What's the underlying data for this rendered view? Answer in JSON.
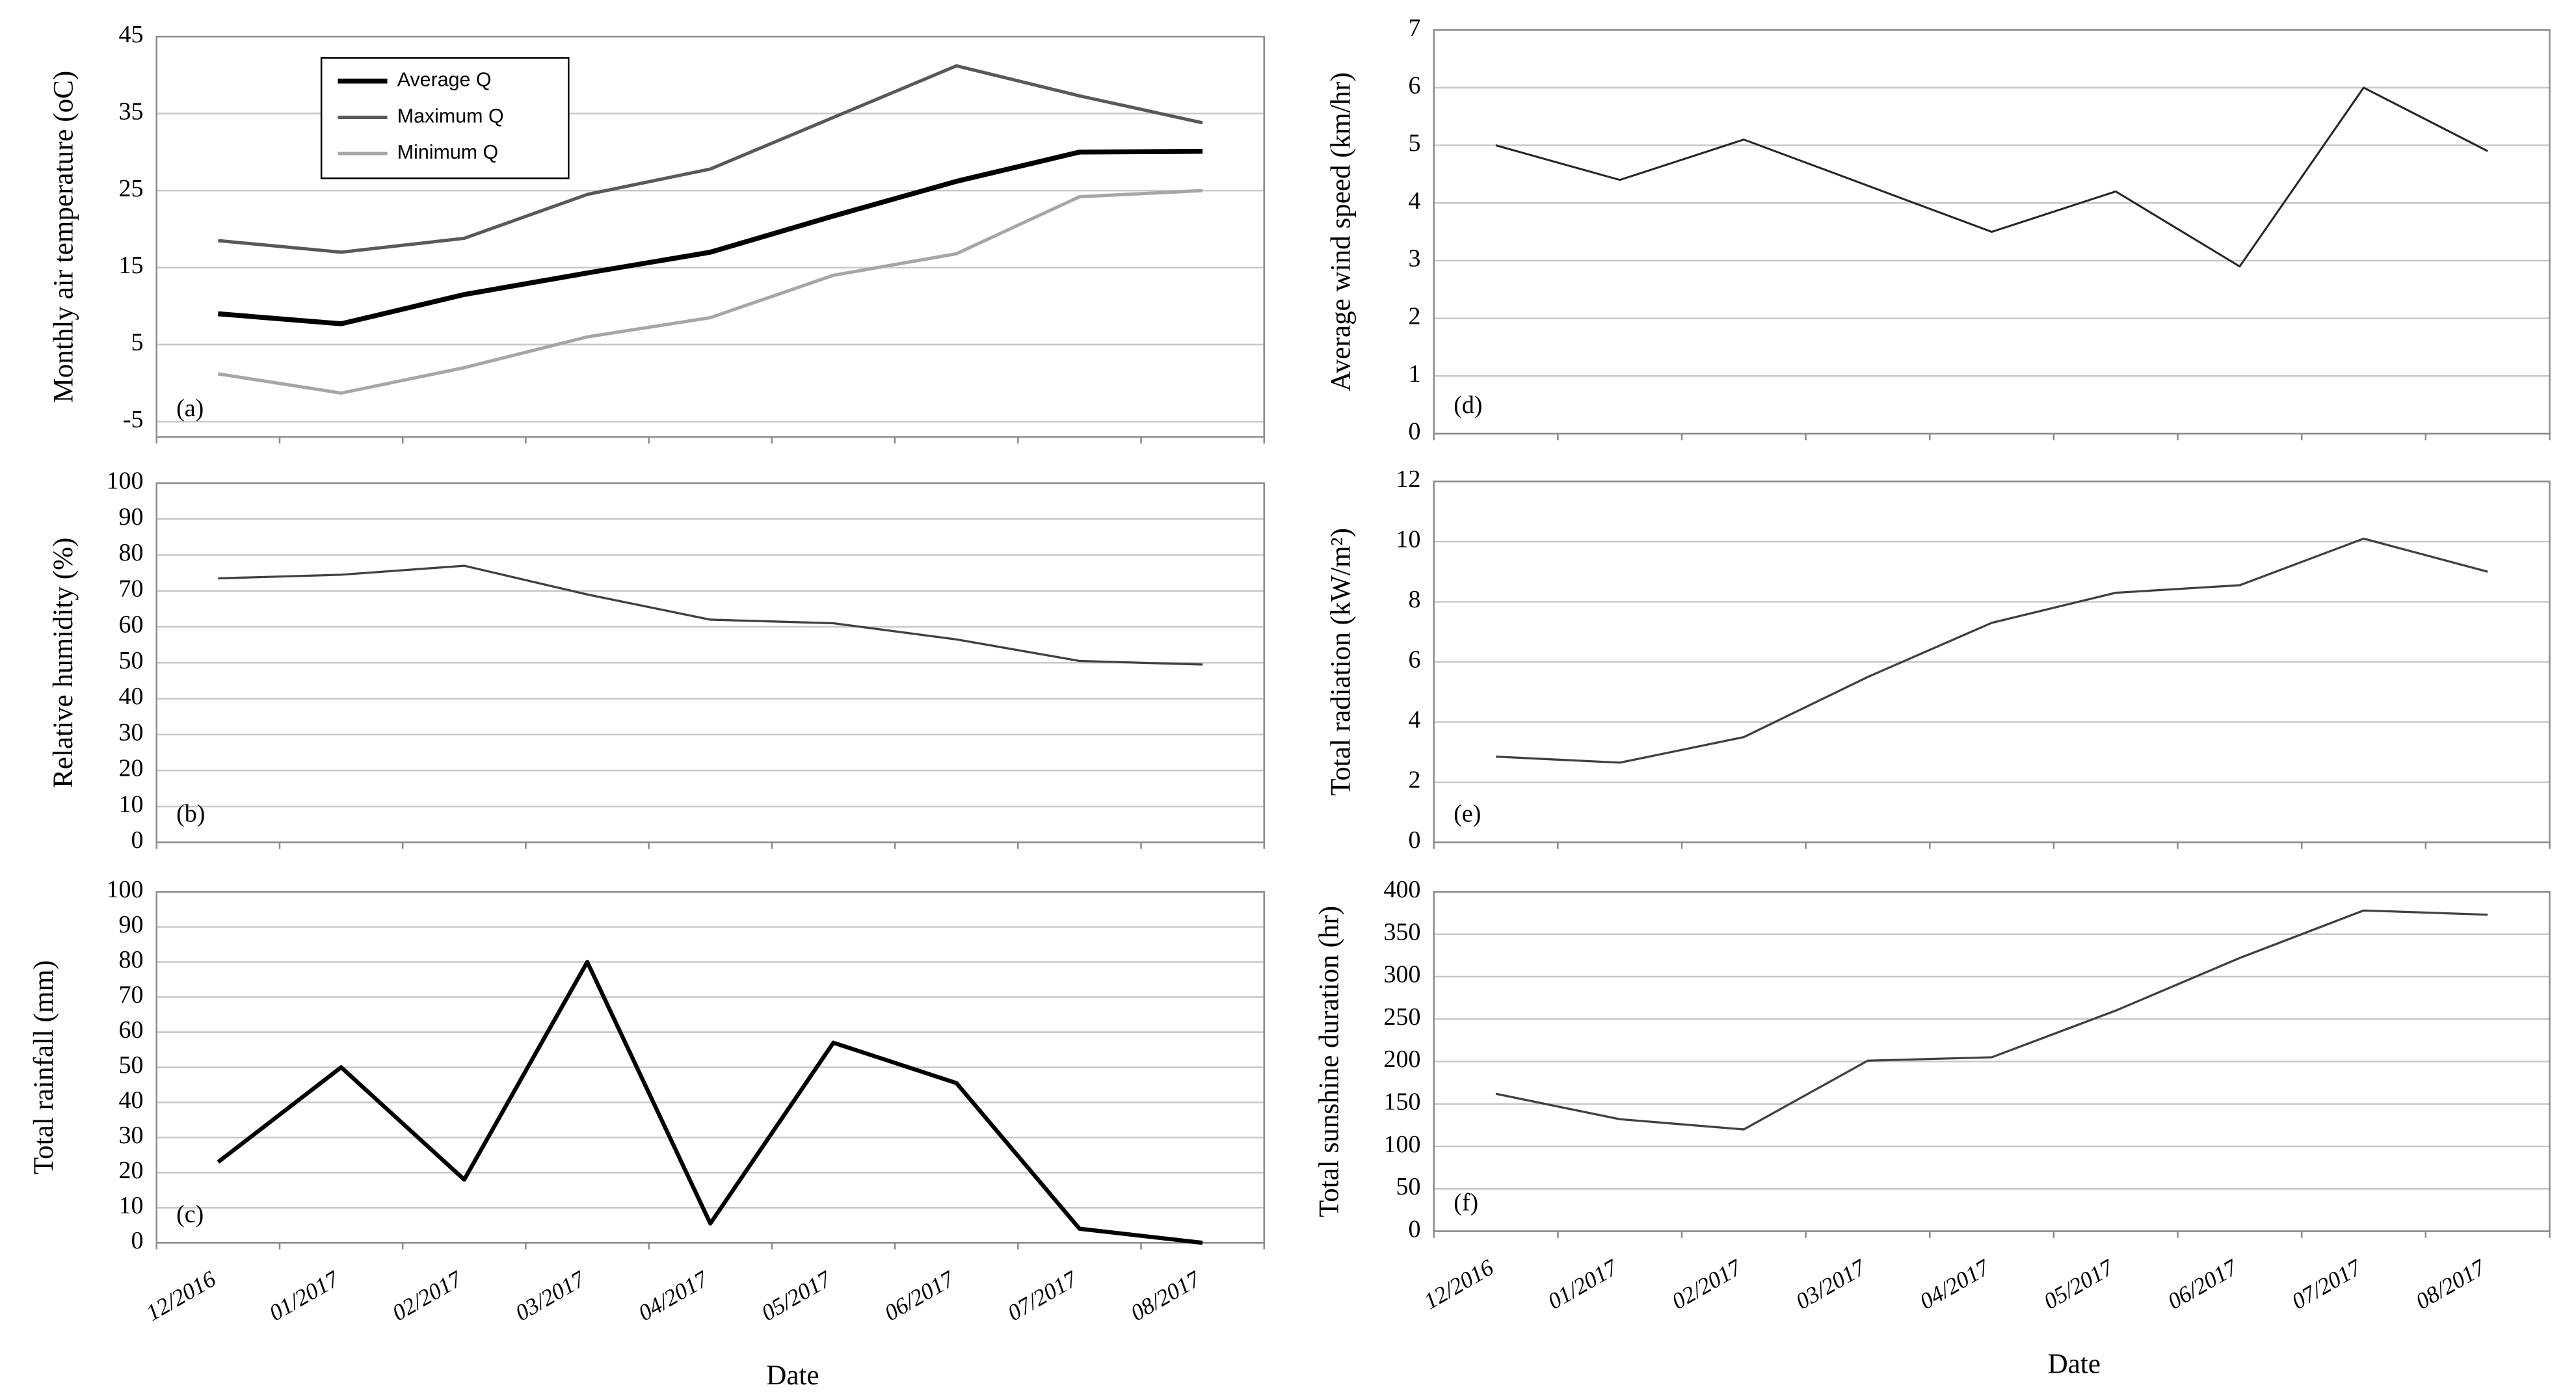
{
  "chart_data": [
    {
      "type": "line",
      "ylabel": "Monthly air temperature (oC)",
      "panel": "(a)",
      "ylim": [
        -7,
        45
      ],
      "yticks": [
        -5,
        5,
        15,
        25,
        35,
        45
      ],
      "grid": true,
      "legend": "upper left",
      "series": [
        {
          "name": "Average Q",
          "color": "#000000",
          "width": 3,
          "values": [
            9,
            7.7,
            11.5,
            14.3,
            17,
            21.7,
            26.2,
            30,
            30.1
          ]
        },
        {
          "name": "Maximum Q",
          "color": "#595959",
          "width": 2,
          "values": [
            18.5,
            17,
            18.8,
            24.5,
            27.8,
            34.5,
            41.2,
            37.3,
            33.8
          ]
        },
        {
          "name": "Minimum Q",
          "color": "#a6a6a6",
          "width": 2,
          "values": [
            1.2,
            -1.3,
            2,
            6,
            8.5,
            14,
            16.8,
            24.2,
            25
          ]
        }
      ]
    },
    {
      "type": "line",
      "ylabel": "Relative humidity (%)",
      "panel": "(b)",
      "ylim": [
        0,
        100
      ],
      "yticks": [
        0,
        10,
        20,
        30,
        40,
        50,
        60,
        70,
        80,
        90,
        100
      ],
      "grid": true,
      "series": [
        {
          "color": "#404040",
          "width": 1.3,
          "values": [
            73.5,
            74.5,
            77,
            69,
            62,
            61,
            56.5,
            50.5,
            49.5
          ]
        }
      ]
    },
    {
      "type": "line",
      "ylabel": "Total rainfall (mm)",
      "panel": "(c)",
      "ylim": [
        0,
        100
      ],
      "yticks": [
        0,
        10,
        20,
        30,
        40,
        50,
        60,
        70,
        80,
        90,
        100
      ],
      "grid": true,
      "xlabel": "Date",
      "categories": [
        "12/2016",
        "01/2017",
        "02/2017",
        "03/2017",
        "04/2017",
        "05/2017",
        "06/2017",
        "07/2017",
        "08/2017"
      ],
      "series": [
        {
          "color": "#000000",
          "width": 2.5,
          "values": [
            23,
            50,
            18,
            80,
            5.5,
            57,
            45.5,
            4,
            0
          ]
        }
      ]
    },
    {
      "type": "line",
      "ylabel": "Average wind speed (km/hr)",
      "panel": "(d)",
      "ylim": [
        0,
        7
      ],
      "yticks": [
        0,
        1,
        2,
        3,
        4,
        5,
        6,
        7
      ],
      "grid": true,
      "series": [
        {
          "color": "#262626",
          "width": 1.2,
          "values": [
            5,
            4.4,
            5.1,
            4.3,
            3.5,
            4.2,
            2.9,
            6,
            4.9
          ]
        }
      ]
    },
    {
      "type": "line",
      "ylabel": "Total radiation (kW/m²)",
      "panel": "(e)",
      "ylim": [
        0,
        12
      ],
      "yticks": [
        0,
        2,
        4,
        6,
        8,
        10,
        12
      ],
      "grid": true,
      "series": [
        {
          "color": "#404040",
          "width": 1.3,
          "values": [
            2.85,
            2.65,
            3.5,
            5.5,
            7.3,
            8.3,
            8.55,
            10.1,
            9
          ]
        }
      ]
    },
    {
      "type": "line",
      "ylabel": "Total sunshine duration (hr)",
      "panel": "(f)",
      "ylim": [
        0,
        400
      ],
      "yticks": [
        0,
        50,
        100,
        150,
        200,
        250,
        300,
        350,
        400
      ],
      "grid": true,
      "xlabel": "Date",
      "categories": [
        "12/2016",
        "01/2017",
        "02/2017",
        "03/2017",
        "04/2017",
        "05/2017",
        "06/2017",
        "07/2017",
        "08/2017"
      ],
      "series": [
        {
          "color": "#404040",
          "width": 1.3,
          "values": [
            162,
            132,
            120,
            201,
            205,
            260,
            322,
            378,
            373
          ]
        }
      ]
    }
  ]
}
